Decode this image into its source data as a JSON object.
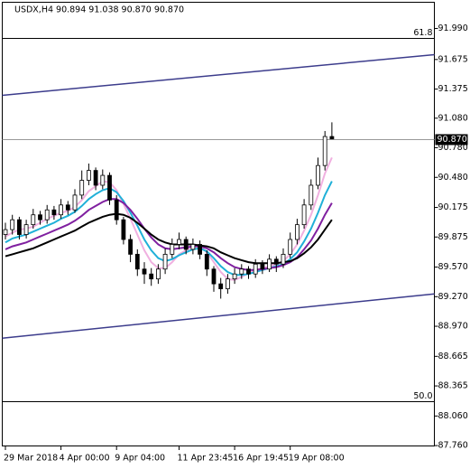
{
  "chart_data": {
    "type": "candlestick",
    "title": "USDX,H4  90.894 91.038 90.870 90.870",
    "categories": [
      "29 Mar 2018",
      null,
      null,
      null,
      null,
      null,
      null,
      null,
      "4 Apr 00:00",
      null,
      null,
      null,
      null,
      null,
      null,
      null,
      "9 Apr 04:00",
      null,
      null,
      null,
      null,
      null,
      null,
      null,
      null,
      "11 Apr 23:45",
      null,
      null,
      null,
      null,
      null,
      null,
      null,
      "16 Apr 19:45",
      null,
      null,
      null,
      null,
      null,
      null,
      null,
      "19 Apr 08:00",
      null,
      null,
      null,
      null,
      null,
      null
    ],
    "candles": [
      [
        89.9,
        90.02,
        89.85,
        89.95
      ],
      [
        89.95,
        90.1,
        89.9,
        90.05
      ],
      [
        90.05,
        90.08,
        89.85,
        89.9
      ],
      [
        89.9,
        90.05,
        89.86,
        90.0
      ],
      [
        90.0,
        90.16,
        89.96,
        90.1
      ],
      [
        90.1,
        90.14,
        90.0,
        90.05
      ],
      [
        90.05,
        90.2,
        90.01,
        90.15
      ],
      [
        90.15,
        90.19,
        90.05,
        90.1
      ],
      [
        90.1,
        90.26,
        90.06,
        90.2
      ],
      [
        90.2,
        90.24,
        90.1,
        90.15
      ],
      [
        90.15,
        90.36,
        90.12,
        90.3
      ],
      [
        90.3,
        90.55,
        90.26,
        90.45
      ],
      [
        90.45,
        90.62,
        90.4,
        90.55
      ],
      [
        90.55,
        90.58,
        90.35,
        90.4
      ],
      [
        90.4,
        90.56,
        90.36,
        90.5
      ],
      [
        90.5,
        90.53,
        90.2,
        90.25
      ],
      [
        90.25,
        90.3,
        90.0,
        90.05
      ],
      [
        90.05,
        90.08,
        89.8,
        89.85
      ],
      [
        89.85,
        89.9,
        89.62,
        89.7
      ],
      [
        89.7,
        89.75,
        89.48,
        89.55
      ],
      [
        89.55,
        89.62,
        89.4,
        89.5
      ],
      [
        89.5,
        89.56,
        89.38,
        89.45
      ],
      [
        89.45,
        89.6,
        89.4,
        89.55
      ],
      [
        89.55,
        89.76,
        89.5,
        89.7
      ],
      [
        89.7,
        89.86,
        89.66,
        89.8
      ],
      [
        89.8,
        89.92,
        89.75,
        89.85
      ],
      [
        89.85,
        89.88,
        89.7,
        89.75
      ],
      [
        89.75,
        89.86,
        89.7,
        89.8
      ],
      [
        89.8,
        89.84,
        89.65,
        89.7
      ],
      [
        89.7,
        89.74,
        89.48,
        89.55
      ],
      [
        89.55,
        89.58,
        89.32,
        89.4
      ],
      [
        89.4,
        89.46,
        89.25,
        89.35
      ],
      [
        89.35,
        89.5,
        89.3,
        89.45
      ],
      [
        89.45,
        89.56,
        89.4,
        89.5
      ],
      [
        89.5,
        89.6,
        89.45,
        89.55
      ],
      [
        89.55,
        89.58,
        89.45,
        89.5
      ],
      [
        89.5,
        89.65,
        89.46,
        89.6
      ],
      [
        89.6,
        89.64,
        89.5,
        89.55
      ],
      [
        89.55,
        89.7,
        89.52,
        89.65
      ],
      [
        89.65,
        89.68,
        89.52,
        89.6
      ],
      [
        89.6,
        89.76,
        89.56,
        89.7
      ],
      [
        89.7,
        89.92,
        89.66,
        89.85
      ],
      [
        89.85,
        90.06,
        89.8,
        90.0
      ],
      [
        90.0,
        90.26,
        89.96,
        90.2
      ],
      [
        90.2,
        90.46,
        90.15,
        90.4
      ],
      [
        90.4,
        90.68,
        90.36,
        90.6
      ],
      [
        90.6,
        90.95,
        90.55,
        90.894
      ],
      [
        90.894,
        91.038,
        90.87,
        90.87
      ]
    ],
    "up_color": "#ffffff",
    "down_color": "#000000",
    "series": [
      {
        "color": "#f0b0e0",
        "values": [
          89.88,
          89.92,
          89.95,
          89.96,
          89.98,
          90.02,
          90.06,
          90.09,
          90.12,
          90.14,
          90.18,
          90.25,
          90.34,
          90.39,
          90.44,
          90.43,
          90.35,
          90.21,
          90.06,
          89.9,
          89.74,
          89.62,
          89.56,
          89.56,
          89.62,
          89.7,
          89.74,
          89.78,
          89.78,
          89.72,
          89.62,
          89.52,
          89.45,
          89.44,
          89.47,
          89.51,
          89.54,
          89.56,
          89.58,
          89.6,
          89.63,
          89.7,
          89.8,
          89.94,
          90.1,
          90.3,
          90.52,
          90.68
        ]
      },
      {
        "color": "#20b0d8",
        "values": [
          89.82,
          89.86,
          89.88,
          89.9,
          89.93,
          89.96,
          89.99,
          90.02,
          90.06,
          90.09,
          90.13,
          90.19,
          90.26,
          90.31,
          90.35,
          90.37,
          90.33,
          90.24,
          90.12,
          89.99,
          89.85,
          89.74,
          89.66,
          89.63,
          89.65,
          89.69,
          89.72,
          89.75,
          89.76,
          89.73,
          89.66,
          89.58,
          89.52,
          89.49,
          89.49,
          89.5,
          89.52,
          89.54,
          89.56,
          89.58,
          89.6,
          89.65,
          89.72,
          89.83,
          89.96,
          90.12,
          90.3,
          90.44
        ]
      },
      {
        "color": "#8020a0",
        "values": [
          89.75,
          89.78,
          89.8,
          89.82,
          89.85,
          89.88,
          89.91,
          89.94,
          89.97,
          90.0,
          90.04,
          90.09,
          90.15,
          90.19,
          90.23,
          90.26,
          90.26,
          90.22,
          90.15,
          90.06,
          89.96,
          89.87,
          89.8,
          89.76,
          89.75,
          89.76,
          89.77,
          89.78,
          89.78,
          89.76,
          89.72,
          89.66,
          89.61,
          89.57,
          89.55,
          89.54,
          89.54,
          89.55,
          89.56,
          89.57,
          89.59,
          89.62,
          89.67,
          89.75,
          89.84,
          89.96,
          90.1,
          90.22
        ]
      },
      {
        "color": "#000000",
        "values": [
          89.68,
          89.7,
          89.72,
          89.74,
          89.76,
          89.79,
          89.82,
          89.85,
          89.88,
          89.91,
          89.94,
          89.98,
          90.02,
          90.05,
          90.08,
          90.1,
          90.11,
          90.1,
          90.07,
          90.02,
          89.96,
          89.9,
          89.85,
          89.82,
          89.8,
          89.8,
          89.8,
          89.8,
          89.79,
          89.78,
          89.76,
          89.72,
          89.69,
          89.66,
          89.64,
          89.62,
          89.61,
          89.61,
          89.61,
          89.61,
          89.62,
          89.63,
          89.66,
          89.71,
          89.77,
          89.85,
          89.95,
          90.05
        ]
      }
    ],
    "trendlines": [
      {
        "color": "#3c3c8c",
        "values": [
          91.312,
          91.724
        ]
      },
      {
        "color": "#3c3c8c",
        "values": [
          88.849,
          89.298
        ]
      }
    ],
    "levels": [
      {
        "value": 91.889,
        "label": "61.8"
      },
      {
        "value": 88.209,
        "label": "50.0"
      }
    ],
    "last_price": {
      "value": 90.87,
      "label": "90.870"
    },
    "ylim": [
      87.77,
      92.26
    ],
    "yticks": [
      {
        "value": 91.99,
        "label": "91.990"
      },
      {
        "value": 91.675,
        "label": "91.675"
      },
      {
        "value": 91.375,
        "label": "91.375"
      },
      {
        "value": 91.08,
        "label": "91.080"
      },
      {
        "value": 90.78,
        "label": "90.780"
      },
      {
        "value": 90.48,
        "label": "90.480"
      },
      {
        "value": 90.175,
        "label": "90.175"
      },
      {
        "value": 89.875,
        "label": "89.875"
      },
      {
        "value": 89.57,
        "label": "89.570"
      },
      {
        "value": 89.27,
        "label": "89.270"
      },
      {
        "value": 88.97,
        "label": "88.970"
      },
      {
        "value": 88.665,
        "label": "88.665"
      },
      {
        "value": 88.365,
        "label": "88.365"
      },
      {
        "value": 88.06,
        "label": "88.060"
      },
      {
        "value": 87.76,
        "label": "87.760"
      }
    ]
  }
}
